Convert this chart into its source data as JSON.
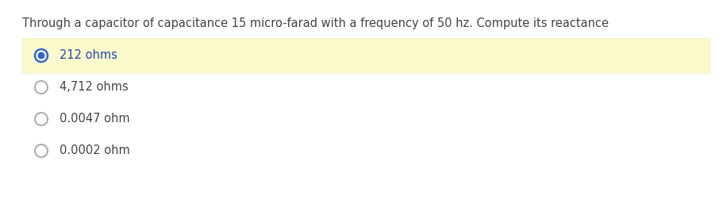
{
  "question": "Through a capacitor of capacitance 15 micro-farad with a frequency of 50 hz. Compute its reactance",
  "options": [
    "212 ohms",
    "4,712 ohms",
    "0.0047 ohm",
    "0.0002 ohm"
  ],
  "correct_index": 0,
  "bg_color": "#ffffff",
  "highlight_color": "#fafacc",
  "question_color": "#444444",
  "option_color": "#444444",
  "correct_option_color": "#2244aa",
  "radio_unselected_color": "#aaaaaa",
  "radio_selected_outer": "#3366cc",
  "radio_selected_inner": "#3366cc",
  "question_fontsize": 10.5,
  "option_fontsize": 10.5,
  "fig_width": 9.06,
  "fig_height": 2.57,
  "dpi": 100
}
